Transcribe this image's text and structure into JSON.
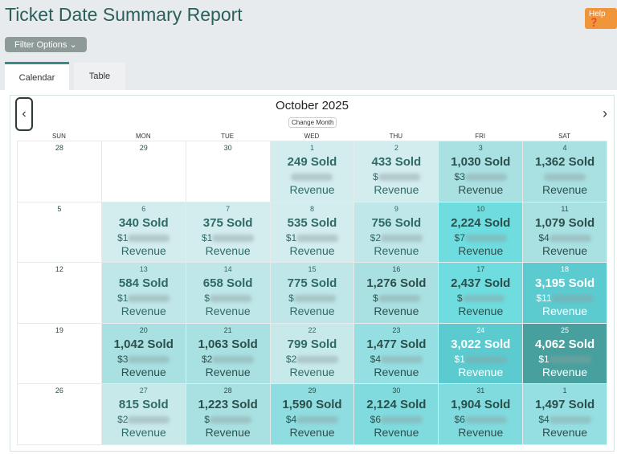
{
  "header": {
    "title": "Ticket Date Summary Report",
    "help_label": "Help ❓",
    "filter_label": "Filter Options ⌄"
  },
  "tabs": [
    {
      "label": "Calendar",
      "active": true
    },
    {
      "label": "Table",
      "active": false
    }
  ],
  "calendar": {
    "month_label": "October 2025",
    "change_month_label": "Change Month",
    "prev_icon": "‹",
    "next_icon": "›",
    "weekdays": [
      "SUN",
      "MON",
      "TUE",
      "WED",
      "THU",
      "FRI",
      "SAT"
    ],
    "revenue_label": "Revenue",
    "cells": [
      {
        "day": "28",
        "empty": true
      },
      {
        "day": "29",
        "empty": true
      },
      {
        "day": "30",
        "empty": true
      },
      {
        "day": "1",
        "sold": "249 Sold",
        "rev_prefix": "",
        "bg": "#d3ecee",
        "fg": "#2f6b66"
      },
      {
        "day": "2",
        "sold": "433 Sold",
        "rev_prefix": "$",
        "bg": "#d3ecee",
        "fg": "#2f6b66"
      },
      {
        "day": "3",
        "sold": "1,030 Sold",
        "rev_prefix": "$3",
        "bg": "#a9e1e3",
        "fg": "#2d4f4c"
      },
      {
        "day": "4",
        "sold": "1,362 Sold",
        "rev_prefix": "",
        "bg": "#a9e1e3",
        "fg": "#2d4f4c"
      },
      {
        "day": "5",
        "empty": true
      },
      {
        "day": "6",
        "sold": "340 Sold",
        "rev_prefix": "$1",
        "bg": "#d3ecee",
        "fg": "#2f6b66"
      },
      {
        "day": "7",
        "sold": "375 Sold",
        "rev_prefix": "$1",
        "bg": "#d3ecee",
        "fg": "#2f6b66"
      },
      {
        "day": "8",
        "sold": "535 Sold",
        "rev_prefix": "$1",
        "bg": "#d3ecee",
        "fg": "#2f6b66"
      },
      {
        "day": "9",
        "sold": "756 Sold",
        "rev_prefix": "$2",
        "bg": "#bfe6e8",
        "fg": "#2f6b66"
      },
      {
        "day": "10",
        "sold": "2,224 Sold",
        "rev_prefix": "$7",
        "bg": "#6fdde0",
        "fg": "#2d4f4c"
      },
      {
        "day": "11",
        "sold": "1,079 Sold",
        "rev_prefix": "$4",
        "bg": "#a9e1e3",
        "fg": "#2d4f4c"
      },
      {
        "day": "12",
        "empty": true
      },
      {
        "day": "13",
        "sold": "584 Sold",
        "rev_prefix": "$1",
        "bg": "#bfe6e8",
        "fg": "#2f6b66"
      },
      {
        "day": "14",
        "sold": "658 Sold",
        "rev_prefix": "$",
        "bg": "#bfe6e8",
        "fg": "#2f6b66"
      },
      {
        "day": "15",
        "sold": "775 Sold",
        "rev_prefix": "$",
        "bg": "#bfe6e8",
        "fg": "#2f6b66"
      },
      {
        "day": "16",
        "sold": "1,276 Sold",
        "rev_prefix": "$",
        "bg": "#a9e1e3",
        "fg": "#2d4f4c"
      },
      {
        "day": "17",
        "sold": "2,437 Sold",
        "rev_prefix": "$",
        "bg": "#6fdde0",
        "fg": "#2d4f4c"
      },
      {
        "day": "18",
        "sold": "3,195 Sold",
        "rev_prefix": "$11",
        "bg": "#5ccbd0",
        "fg": "#ffffff"
      },
      {
        "day": "19",
        "empty": true
      },
      {
        "day": "20",
        "sold": "1,042 Sold",
        "rev_prefix": "$3",
        "bg": "#a9e1e3",
        "fg": "#2d4f4c"
      },
      {
        "day": "21",
        "sold": "1,063 Sold",
        "rev_prefix": "$2",
        "bg": "#a9e1e3",
        "fg": "#2d4f4c"
      },
      {
        "day": "22",
        "sold": "799 Sold",
        "rev_prefix": "$2",
        "bg": "#c8e9ea",
        "fg": "#2f6b66"
      },
      {
        "day": "23",
        "sold": "1,477 Sold",
        "rev_prefix": "$4",
        "bg": "#95dfe2",
        "fg": "#2d4f4c"
      },
      {
        "day": "24",
        "sold": "3,022 Sold",
        "rev_prefix": "$1",
        "bg": "#5ccbd0",
        "fg": "#ffffff"
      },
      {
        "day": "25",
        "sold": "4,062 Sold",
        "rev_prefix": "$1",
        "bg": "#48a09e",
        "fg": "#ffffff"
      },
      {
        "day": "26",
        "empty": true
      },
      {
        "day": "27",
        "sold": "815 Sold",
        "rev_prefix": "$2",
        "bg": "#c8e9ea",
        "fg": "#2f6b66"
      },
      {
        "day": "28",
        "sold": "1,223 Sold",
        "rev_prefix": "$",
        "bg": "#a9e1e3",
        "fg": "#2d4f4c"
      },
      {
        "day": "29",
        "sold": "1,590 Sold",
        "rev_prefix": "$4",
        "bg": "#8fdde1",
        "fg": "#2d4f4c"
      },
      {
        "day": "30",
        "sold": "2,124 Sold",
        "rev_prefix": "$6",
        "bg": "#80dbdf",
        "fg": "#2d4f4c"
      },
      {
        "day": "31",
        "sold": "1,904 Sold",
        "rev_prefix": "$6",
        "bg": "#80dbdf",
        "fg": "#2d4f4c"
      },
      {
        "day": "1",
        "sold": "1,497 Sold",
        "rev_prefix": "$4",
        "bg": "#95dfe2",
        "fg": "#2d4f4c"
      }
    ]
  }
}
